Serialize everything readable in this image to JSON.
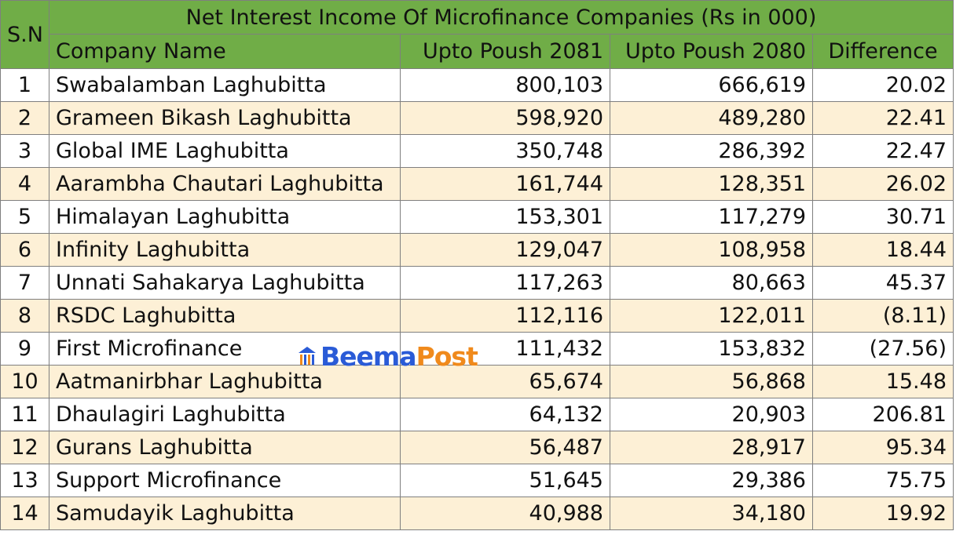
{
  "title": "Net Interest Income Of Microfinance Companies  (Rs in 000)",
  "headers": {
    "sn": "S.N",
    "company": "Company Name",
    "col2081": "Upto Poush 2081",
    "col2080": "Upto Poush 2080",
    "difference": "Difference"
  },
  "rows": [
    {
      "sn": "1",
      "company": "Swabalamban Laghubitta",
      "p2081": "800,103",
      "p2080": "666,619",
      "diff": "20.02"
    },
    {
      "sn": "2",
      "company": "Grameen Bikash Laghubitta",
      "p2081": "598,920",
      "p2080": "489,280",
      "diff": "22.41"
    },
    {
      "sn": "3",
      "company": "Global IME Laghubitta",
      "p2081": "350,748",
      "p2080": "286,392",
      "diff": "22.47"
    },
    {
      "sn": "4",
      "company": "Aarambha Chautari Laghubitta",
      "p2081": "161,744",
      "p2080": "128,351",
      "diff": "26.02"
    },
    {
      "sn": "5",
      "company": "Himalayan Laghubitta",
      "p2081": "153,301",
      "p2080": "117,279",
      "diff": "30.71"
    },
    {
      "sn": "6",
      "company": "Infinity Laghubitta",
      "p2081": "129,047",
      "p2080": "108,958",
      "diff": "18.44"
    },
    {
      "sn": "7",
      "company": "Unnati Sahakarya Laghubitta",
      "p2081": "117,263",
      "p2080": "80,663",
      "diff": "45.37"
    },
    {
      "sn": "8",
      "company": "RSDC Laghubitta",
      "p2081": "112,116",
      "p2080": "122,011",
      "diff": "(8.11)"
    },
    {
      "sn": "9",
      "company": "First Microfinance",
      "p2081": "111,432",
      "p2080": "153,832",
      "diff": "(27.56)"
    },
    {
      "sn": "10",
      "company": "Aatmanirbhar Laghubitta",
      "p2081": "65,674",
      "p2080": "56,868",
      "diff": "15.48"
    },
    {
      "sn": "11",
      "company": "Dhaulagiri Laghubitta",
      "p2081": "64,132",
      "p2080": "20,903",
      "diff": "206.81"
    },
    {
      "sn": "12",
      "company": "Gurans Laghubitta",
      "p2081": "56,487",
      "p2080": "28,917",
      "diff": "95.34"
    },
    {
      "sn": "13",
      "company": "Support Microfinance",
      "p2081": "51,645",
      "p2080": "29,386",
      "diff": "75.75"
    },
    {
      "sn": "14",
      "company": "Samudayik Laghubitta",
      "p2081": "40,988",
      "p2080": "34,180",
      "diff": "19.92"
    }
  ],
  "watermark": {
    "part1": "Beema",
    "part2": "Post"
  },
  "colors": {
    "header": "#70ad47",
    "band": "#fdf0d6",
    "brand_blue": "#2a5bd7",
    "brand_orange": "#f08a1c"
  }
}
